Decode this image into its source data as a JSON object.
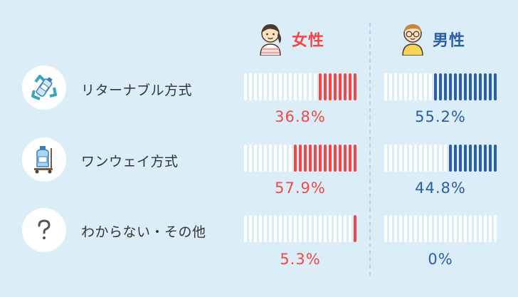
{
  "columns": [
    {
      "label": "女性",
      "color": "#f04848",
      "icon": "woman-icon"
    },
    {
      "label": "男性",
      "color": "#2b5ea3",
      "icon": "man-icon"
    }
  ],
  "rows": [
    {
      "label": "リターナブル方式",
      "icon": "returnable-bottle-recycle-icon"
    },
    {
      "label": "ワンウェイ方式",
      "icon": "one-way-bottle-cart-icon"
    },
    {
      "label": "わからない・その他",
      "icon": "question-mark-icon"
    }
  ],
  "chart_data": {
    "type": "bar",
    "categories": [
      "リターナブル方式",
      "ワンウェイ方式",
      "わからない・その他"
    ],
    "series": [
      {
        "name": "女性",
        "values": [
          36.8,
          57.9,
          5.3
        ],
        "labels": [
          "36.8%",
          "57.9%",
          "5.3%"
        ]
      },
      {
        "name": "男性",
        "values": [
          55.2,
          44.8,
          0
        ],
        "labels": [
          "55.2%",
          "44.8%",
          "0%"
        ]
      }
    ],
    "unit": "%",
    "ylim": [
      0,
      100
    ]
  }
}
